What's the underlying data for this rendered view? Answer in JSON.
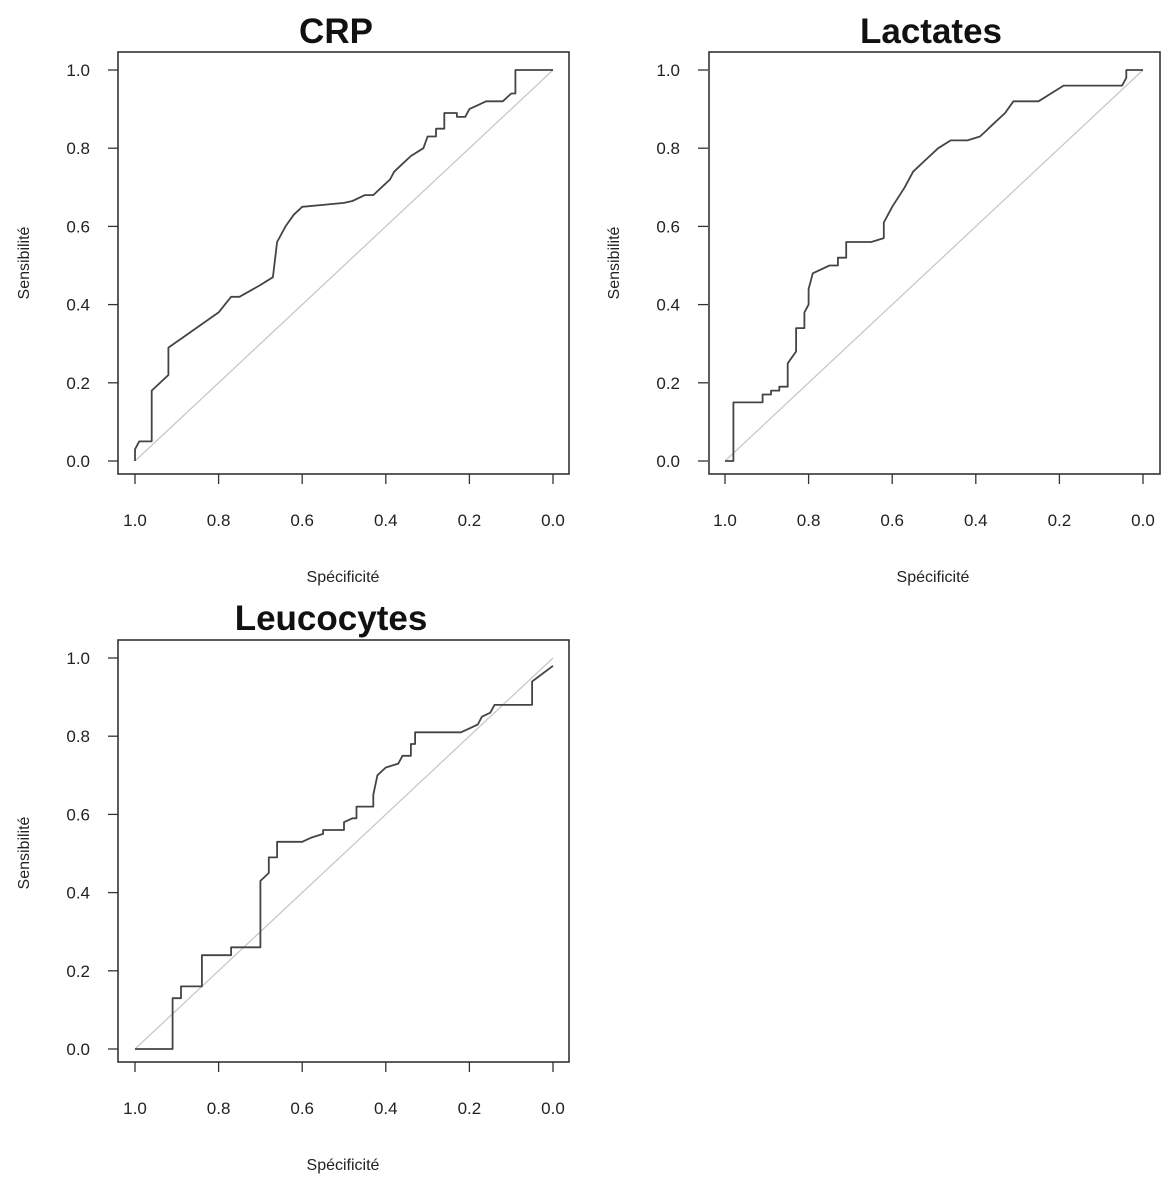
{
  "chart_data": [
    {
      "type": "line",
      "title": "CRP",
      "xlabel": "Spécificité",
      "ylabel": "Sensibilité",
      "xlim": [
        1.0,
        0.0
      ],
      "ylim": [
        0.0,
        1.0
      ],
      "xticks": [
        "1.0",
        "0.8",
        "0.6",
        "0.4",
        "0.2",
        "0.0"
      ],
      "yticks": [
        "0.0",
        "0.2",
        "0.4",
        "0.6",
        "0.8",
        "1.0"
      ],
      "grid": false,
      "reference_line": true,
      "series": [
        {
          "x": [
            1.0,
            1.0,
            0.99,
            0.96,
            0.96,
            0.92,
            0.92,
            0.88,
            0.84,
            0.8,
            0.77,
            0.75,
            0.7,
            0.67,
            0.66,
            0.64,
            0.62,
            0.6,
            0.55,
            0.5,
            0.48,
            0.45,
            0.43,
            0.41,
            0.39,
            0.38,
            0.36,
            0.34,
            0.31,
            0.3,
            0.28,
            0.28,
            0.26,
            0.26,
            0.23,
            0.23,
            0.21,
            0.2,
            0.18,
            0.16,
            0.12,
            0.1,
            0.09,
            0.09,
            0.0
          ],
          "y": [
            0.0,
            0.03,
            0.05,
            0.05,
            0.18,
            0.22,
            0.29,
            0.32,
            0.35,
            0.38,
            0.42,
            0.42,
            0.45,
            0.47,
            0.56,
            0.6,
            0.63,
            0.65,
            0.655,
            0.66,
            0.665,
            0.68,
            0.68,
            0.7,
            0.72,
            0.74,
            0.76,
            0.78,
            0.8,
            0.83,
            0.83,
            0.85,
            0.85,
            0.89,
            0.89,
            0.88,
            0.88,
            0.9,
            0.91,
            0.92,
            0.92,
            0.94,
            0.94,
            1.0,
            1.0
          ]
        }
      ]
    },
    {
      "type": "line",
      "title": "Lactates",
      "xlabel": "Spécificité",
      "ylabel": "Sensibilité",
      "xlim": [
        1.0,
        0.0
      ],
      "ylim": [
        0.0,
        1.0
      ],
      "xticks": [
        "1.0",
        "0.8",
        "0.6",
        "0.4",
        "0.2",
        "0.0"
      ],
      "yticks": [
        "0.0",
        "0.2",
        "0.4",
        "0.6",
        "0.8",
        "1.0"
      ],
      "grid": false,
      "reference_line": true,
      "series": [
        {
          "x": [
            1.0,
            0.98,
            0.98,
            0.91,
            0.91,
            0.89,
            0.89,
            0.87,
            0.87,
            0.85,
            0.85,
            0.83,
            0.83,
            0.81,
            0.81,
            0.8,
            0.8,
            0.79,
            0.79,
            0.75,
            0.73,
            0.73,
            0.71,
            0.71,
            0.65,
            0.62,
            0.62,
            0.6,
            0.57,
            0.55,
            0.52,
            0.49,
            0.46,
            0.42,
            0.39,
            0.38,
            0.36,
            0.33,
            0.31,
            0.28,
            0.25,
            0.22,
            0.19,
            0.1,
            0.05,
            0.04,
            0.04,
            0.0
          ],
          "y": [
            0.0,
            0.0,
            0.15,
            0.15,
            0.17,
            0.17,
            0.18,
            0.18,
            0.19,
            0.19,
            0.25,
            0.28,
            0.34,
            0.34,
            0.38,
            0.4,
            0.44,
            0.48,
            0.48,
            0.5,
            0.5,
            0.52,
            0.52,
            0.56,
            0.56,
            0.57,
            0.61,
            0.65,
            0.7,
            0.74,
            0.77,
            0.8,
            0.82,
            0.82,
            0.83,
            0.84,
            0.86,
            0.89,
            0.92,
            0.92,
            0.92,
            0.94,
            0.96,
            0.96,
            0.96,
            0.98,
            1.0,
            1.0
          ]
        }
      ]
    },
    {
      "type": "line",
      "title": "Leucocytes",
      "xlabel": "Spécificité",
      "ylabel": "Sensibilité",
      "xlim": [
        1.0,
        0.0
      ],
      "ylim": [
        0.0,
        1.0
      ],
      "xticks": [
        "1.0",
        "0.8",
        "0.6",
        "0.4",
        "0.2",
        "0.0"
      ],
      "yticks": [
        "0.0",
        "0.2",
        "0.4",
        "0.6",
        "0.8",
        "1.0"
      ],
      "grid": false,
      "reference_line": true,
      "series": [
        {
          "x": [
            1.0,
            0.91,
            0.91,
            0.89,
            0.89,
            0.84,
            0.84,
            0.77,
            0.77,
            0.7,
            0.7,
            0.68,
            0.68,
            0.66,
            0.66,
            0.6,
            0.58,
            0.55,
            0.55,
            0.5,
            0.5,
            0.48,
            0.47,
            0.47,
            0.43,
            0.43,
            0.42,
            0.4,
            0.37,
            0.36,
            0.34,
            0.34,
            0.33,
            0.33,
            0.31,
            0.27,
            0.22,
            0.2,
            0.18,
            0.17,
            0.15,
            0.14,
            0.1,
            0.05,
            0.05,
            0.0
          ],
          "y": [
            0.0,
            0.0,
            0.13,
            0.13,
            0.16,
            0.16,
            0.24,
            0.24,
            0.26,
            0.26,
            0.43,
            0.45,
            0.49,
            0.49,
            0.53,
            0.53,
            0.54,
            0.55,
            0.56,
            0.56,
            0.58,
            0.59,
            0.59,
            0.62,
            0.62,
            0.65,
            0.7,
            0.72,
            0.73,
            0.75,
            0.75,
            0.78,
            0.78,
            0.81,
            0.81,
            0.81,
            0.81,
            0.82,
            0.83,
            0.85,
            0.86,
            0.88,
            0.88,
            0.88,
            0.94,
            0.98
          ]
        }
      ]
    }
  ]
}
